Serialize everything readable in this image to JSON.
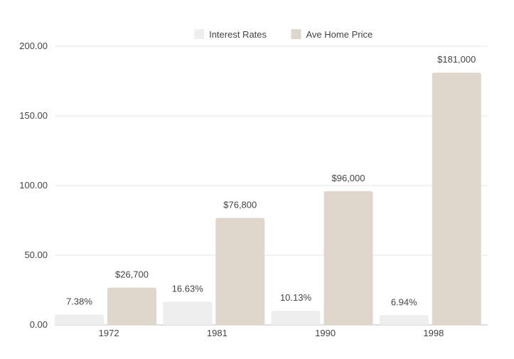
{
  "chart_data": {
    "type": "bar",
    "categories": [
      "1972",
      "1981",
      "1990",
      "1998"
    ],
    "series": [
      {
        "name": "Interest Rates",
        "values": [
          7.38,
          16.63,
          10.13,
          6.94
        ],
        "labels": [
          "7.38%",
          "16.63%",
          "10.13%",
          "6.94%"
        ],
        "color": "#eeeeee"
      },
      {
        "name": "Ave Home Price",
        "values": [
          26.7,
          76.8,
          96.0,
          181.0
        ],
        "labels": [
          "$26,700",
          "$76,800",
          "$96,000",
          "$181,000"
        ],
        "color": "#dfd7cc"
      }
    ],
    "ylim": [
      0,
      200
    ],
    "yticks": [
      "0.00",
      "50.00",
      "100.00",
      "150.00",
      "200.00"
    ],
    "ytick_values": [
      0,
      50,
      100,
      150,
      200
    ],
    "grid": true,
    "legend_position": "top-center"
  }
}
